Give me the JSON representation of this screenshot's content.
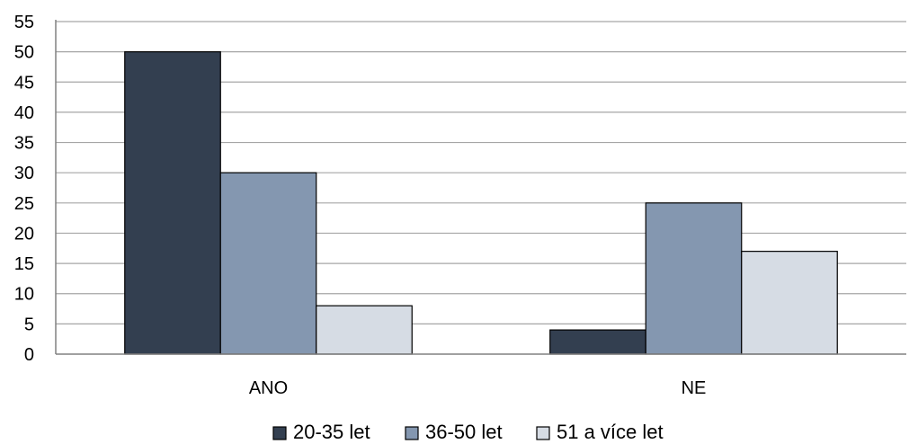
{
  "chart_data": {
    "type": "bar",
    "categories": [
      "ANO",
      "NE"
    ],
    "series": [
      {
        "name": "20-35 let",
        "values": [
          50,
          4
        ],
        "color": "#333F50"
      },
      {
        "name": "36-50 let",
        "values": [
          30,
          25
        ],
        "color": "#8497B0"
      },
      {
        "name": "51 a více let",
        "values": [
          8,
          17
        ],
        "color": "#D6DCE4"
      }
    ],
    "ylim": [
      0,
      55
    ],
    "yticks": [
      0,
      5,
      10,
      15,
      20,
      25,
      30,
      35,
      40,
      45,
      50,
      55
    ],
    "grid": true,
    "legend_position": "bottom",
    "title": "",
    "xlabel": "",
    "ylabel": ""
  }
}
